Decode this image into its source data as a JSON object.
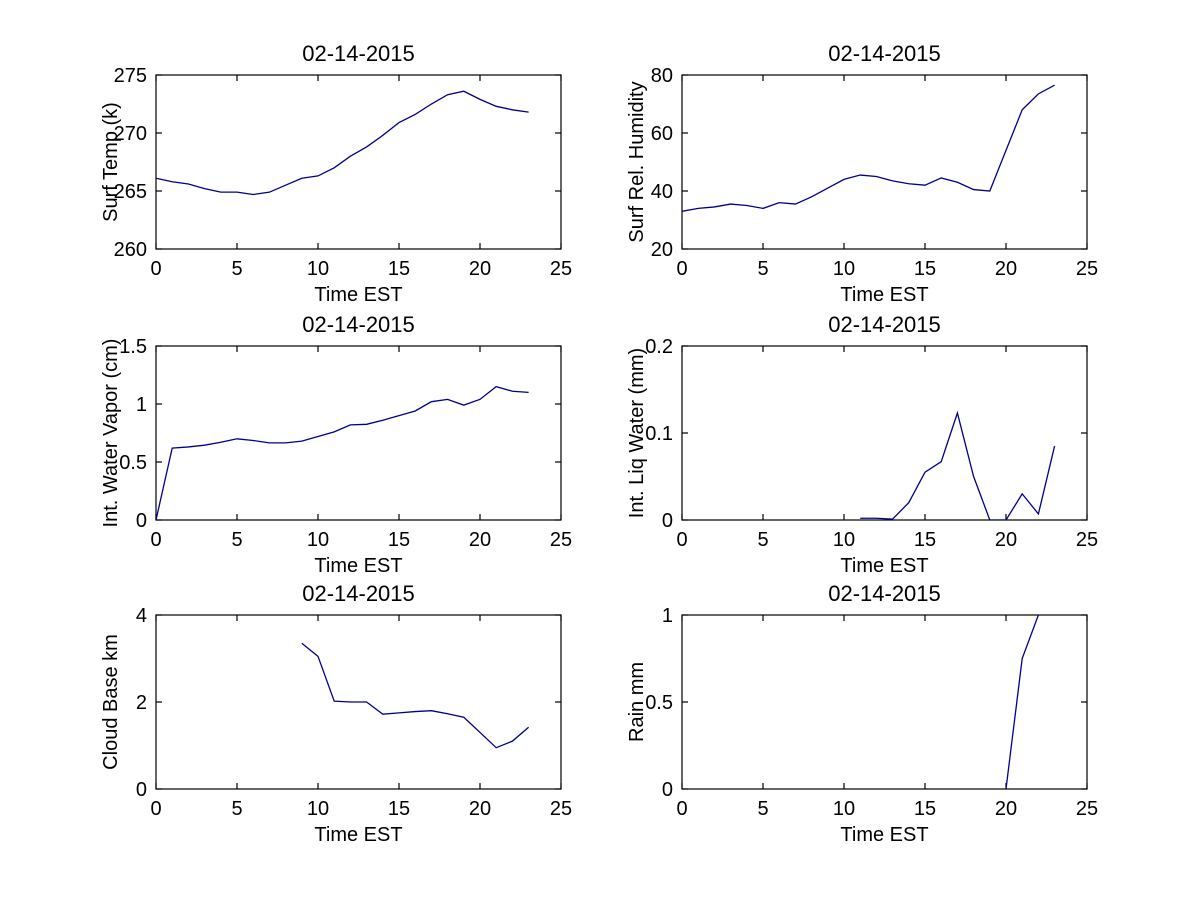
{
  "figure": {
    "background_color": "#ffffff",
    "shared_title": "02-14-2015",
    "shared_xlabel": "Time EST"
  },
  "chart_data": [
    {
      "type": "line",
      "title": "02-14-2015",
      "xlabel": "Time EST",
      "ylabel": "Surf Temp (k)",
      "xlim": [
        0,
        25
      ],
      "ylim": [
        260,
        275
      ],
      "xticks": [
        0,
        5,
        10,
        15,
        20,
        25
      ],
      "yticks": [
        260,
        265,
        270,
        275
      ],
      "grid": false,
      "legend": "none",
      "line_color": "#00008C",
      "x": [
        0,
        1,
        2,
        3,
        4,
        5,
        6,
        7,
        8,
        9,
        10,
        11,
        12,
        13,
        14,
        15,
        16,
        17,
        18,
        19,
        20,
        21,
        22,
        23
      ],
      "y": [
        266.1,
        265.8,
        265.6,
        265.2,
        264.9,
        264.9,
        264.7,
        264.9,
        265.5,
        266.1,
        266.3,
        267.0,
        268.0,
        268.8,
        269.8,
        270.9,
        271.6,
        272.5,
        273.3,
        273.6,
        272.9,
        272.3,
        272.0,
        271.8
      ]
    },
    {
      "type": "line",
      "title": "02-14-2015",
      "xlabel": "Time EST",
      "ylabel": "Surf Rel. Humidity",
      "xlim": [
        0,
        25
      ],
      "ylim": [
        20,
        80
      ],
      "xticks": [
        0,
        5,
        10,
        15,
        20,
        25
      ],
      "yticks": [
        20,
        40,
        60,
        80
      ],
      "grid": false,
      "legend": "none",
      "line_color": "#00008C",
      "x": [
        0,
        1,
        2,
        3,
        4,
        5,
        6,
        7,
        8,
        9,
        10,
        11,
        12,
        13,
        14,
        15,
        16,
        17,
        18,
        19,
        20,
        21,
        22,
        23
      ],
      "y": [
        33,
        34,
        34.5,
        35.5,
        35,
        34,
        36,
        35.5,
        38,
        41,
        44,
        45.5,
        45,
        43.5,
        42.5,
        42,
        44.5,
        43,
        40.5,
        40,
        54,
        68,
        73.5,
        76.5
      ]
    },
    {
      "type": "line",
      "title": "02-14-2015",
      "xlabel": "Time EST",
      "ylabel": "Int. Water Vapor (cm)",
      "xlim": [
        0,
        25
      ],
      "ylim": [
        0,
        1.5
      ],
      "xticks": [
        0,
        5,
        10,
        15,
        20,
        25
      ],
      "yticks": [
        0,
        0.5,
        1,
        1.5
      ],
      "grid": false,
      "legend": "none",
      "line_color": "#00008C",
      "x": [
        0,
        1,
        2,
        3,
        4,
        5,
        6,
        7,
        8,
        9,
        10,
        11,
        12,
        13,
        14,
        15,
        16,
        17,
        18,
        19,
        20,
        21,
        22,
        23
      ],
      "y": [
        0,
        0.62,
        0.63,
        0.645,
        0.67,
        0.7,
        0.685,
        0.665,
        0.665,
        0.68,
        0.72,
        0.76,
        0.82,
        0.825,
        0.86,
        0.9,
        0.94,
        1.02,
        1.04,
        0.99,
        1.04,
        1.15,
        1.11,
        1.1
      ]
    },
    {
      "type": "line",
      "title": "02-14-2015",
      "xlabel": "Time EST",
      "ylabel": "Int. Liq Water (mm)",
      "xlim": [
        0,
        25
      ],
      "ylim": [
        0,
        0.2
      ],
      "xticks": [
        0,
        5,
        10,
        15,
        20,
        25
      ],
      "yticks": [
        0,
        0.1,
        0.2
      ],
      "grid": false,
      "legend": "none",
      "line_color": "#00008C",
      "x": [
        11,
        12,
        13,
        14,
        15,
        16,
        17,
        18,
        19,
        20,
        21,
        22,
        23
      ],
      "y": [
        0.002,
        0.002,
        0.001,
        0.02,
        0.055,
        0.067,
        0.123,
        0.05,
        0,
        0,
        0.03,
        0.007,
        0.085
      ]
    },
    {
      "type": "line",
      "title": "02-14-2015",
      "xlabel": "Time EST",
      "ylabel": "Cloud Base km",
      "xlim": [
        0,
        25
      ],
      "ylim": [
        0,
        4
      ],
      "xticks": [
        0,
        5,
        10,
        15,
        20,
        25
      ],
      "yticks": [
        0,
        2,
        4
      ],
      "grid": false,
      "legend": "none",
      "line_color": "#00008C",
      "x": [
        9,
        10,
        11,
        12,
        13,
        14,
        15,
        16,
        17,
        18,
        19,
        20,
        21,
        22,
        23
      ],
      "y": [
        3.35,
        3.05,
        2.02,
        2.0,
        2.0,
        1.72,
        1.75,
        1.78,
        1.8,
        1.73,
        1.65,
        1.3,
        0.95,
        1.1,
        1.42
      ]
    },
    {
      "type": "line",
      "title": "02-14-2015",
      "xlabel": "Time EST",
      "ylabel": "Rain mm",
      "xlim": [
        0,
        25
      ],
      "ylim": [
        0,
        1
      ],
      "xticks": [
        0,
        5,
        10,
        15,
        20,
        25
      ],
      "yticks": [
        0,
        0.5,
        1
      ],
      "grid": false,
      "legend": "none",
      "line_color": "#00008C",
      "x": [
        20,
        21,
        22
      ],
      "y": [
        0,
        0.75,
        1.0
      ]
    }
  ]
}
